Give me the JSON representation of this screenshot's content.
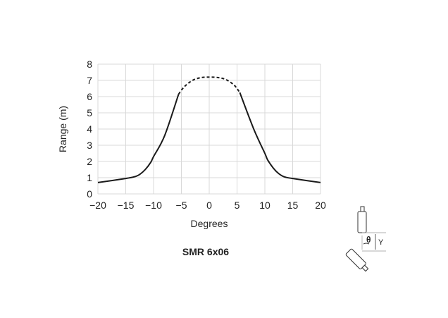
{
  "chart_data": {
    "type": "line",
    "title": "SMR 6x06",
    "xlabel": "Degrees",
    "ylabel": "Range (m)",
    "xlim": [
      -20,
      20
    ],
    "ylim": [
      0,
      8
    ],
    "grid": true,
    "xticks": [
      -20,
      -15,
      -10,
      -5,
      0,
      5,
      10,
      15,
      20
    ],
    "xtick_labels": [
      "−20",
      "−15",
      "−10",
      "−5",
      "0",
      "5",
      "10",
      "15",
      "20"
    ],
    "yticks": [
      0,
      1,
      2,
      3,
      4,
      5,
      6,
      7,
      8
    ],
    "ytick_labels": [
      "0",
      "1",
      "2",
      "3",
      "4",
      "5",
      "6",
      "7",
      "8"
    ],
    "series": [
      {
        "style": "solid",
        "x": [
          -20,
          -15,
          -13.5,
          -12.5,
          -11.5,
          -10.5,
          -10,
          -8,
          -5.5
        ],
        "y": [
          0.7,
          0.95,
          1.05,
          1.2,
          1.5,
          1.95,
          2.3,
          3.6,
          6.15
        ]
      },
      {
        "style": "dashed",
        "x": [
          -5.5,
          -4.5,
          -3,
          -1.5,
          0,
          1.5,
          3,
          4.5,
          5.5
        ],
        "y": [
          6.15,
          6.6,
          7.0,
          7.17,
          7.2,
          7.18,
          7.05,
          6.7,
          6.25
        ]
      },
      {
        "style": "solid",
        "x": [
          5.5,
          8,
          10,
          10.5,
          11.5,
          12.5,
          13.5,
          15,
          20
        ],
        "y": [
          6.25,
          4.0,
          2.5,
          2.1,
          1.6,
          1.25,
          1.05,
          0.95,
          0.7
        ]
      }
    ],
    "line_color": "#1a1a1a",
    "grid_color": "#d9d9d9"
  },
  "diagram": {
    "angle_label": "θ",
    "offset_label": "Y"
  }
}
